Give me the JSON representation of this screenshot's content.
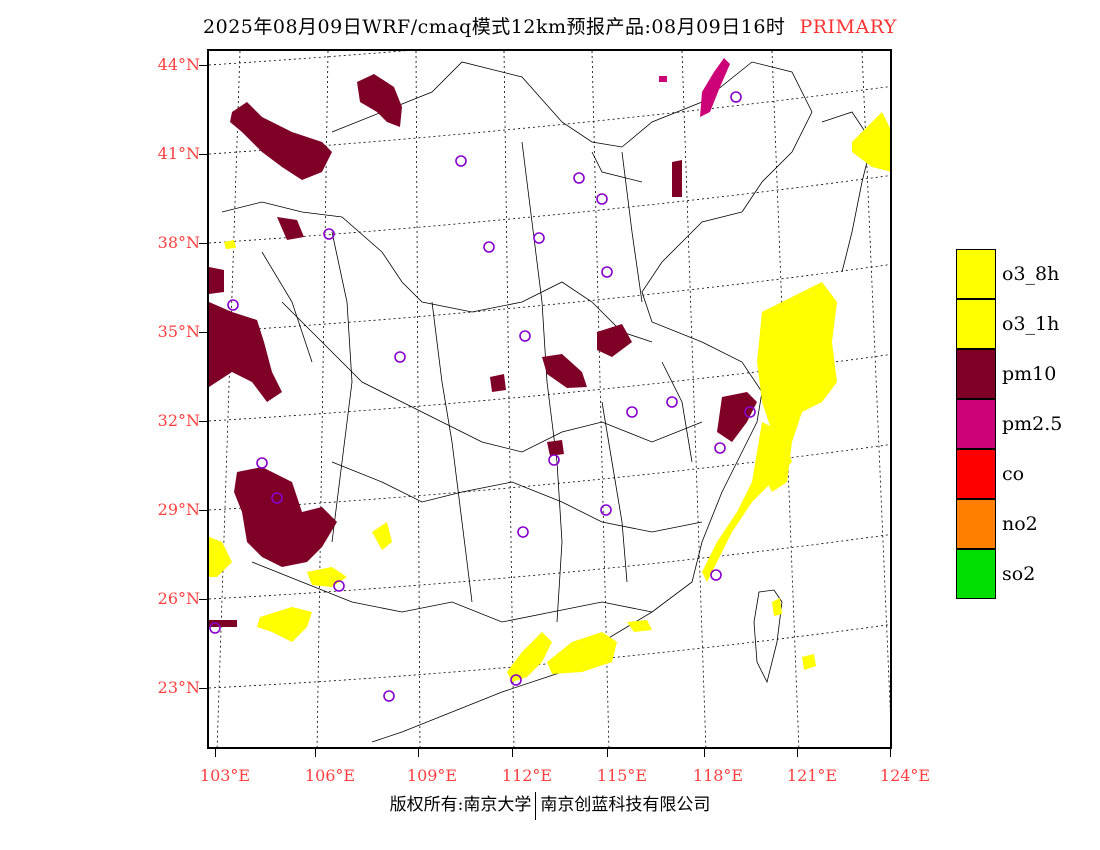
{
  "title": {
    "main": "2025年08月09日WRF/cmaq模式12km预报产品:08月09日16时",
    "tag": "PRIMARY"
  },
  "map": {
    "lat_labels": [
      "44°N",
      "41°N",
      "38°N",
      "35°N",
      "32°N",
      "29°N",
      "26°N",
      "23°N"
    ],
    "lon_labels": [
      "103°E",
      "106°E",
      "109°E",
      "112°E",
      "115°E",
      "118°E",
      "121°E",
      "124°E"
    ],
    "colors": {
      "o3_8h": "#ffff00",
      "o3_1h": "#ffff00",
      "pm10": "#7f0026",
      "pm25": "#cc0077",
      "co": "#ff0000",
      "no2": "#ff7f00",
      "so2": "#00dd00",
      "station": "#8800cc"
    }
  },
  "legend": {
    "items": [
      {
        "label": "o3_8h",
        "color": "#ffff00"
      },
      {
        "label": "o3_1h",
        "color": "#ffff00"
      },
      {
        "label": "pm10",
        "color": "#7f0026"
      },
      {
        "label": "pm2.5",
        "color": "#cc0077"
      },
      {
        "label": "co",
        "color": "#ff0000"
      },
      {
        "label": "no2",
        "color": "#ff7f00"
      },
      {
        "label": "so2",
        "color": "#00dd00"
      }
    ]
  },
  "footer": {
    "left": "版权所有:南京大学",
    "right": "南京创蓝科技有限公司"
  }
}
